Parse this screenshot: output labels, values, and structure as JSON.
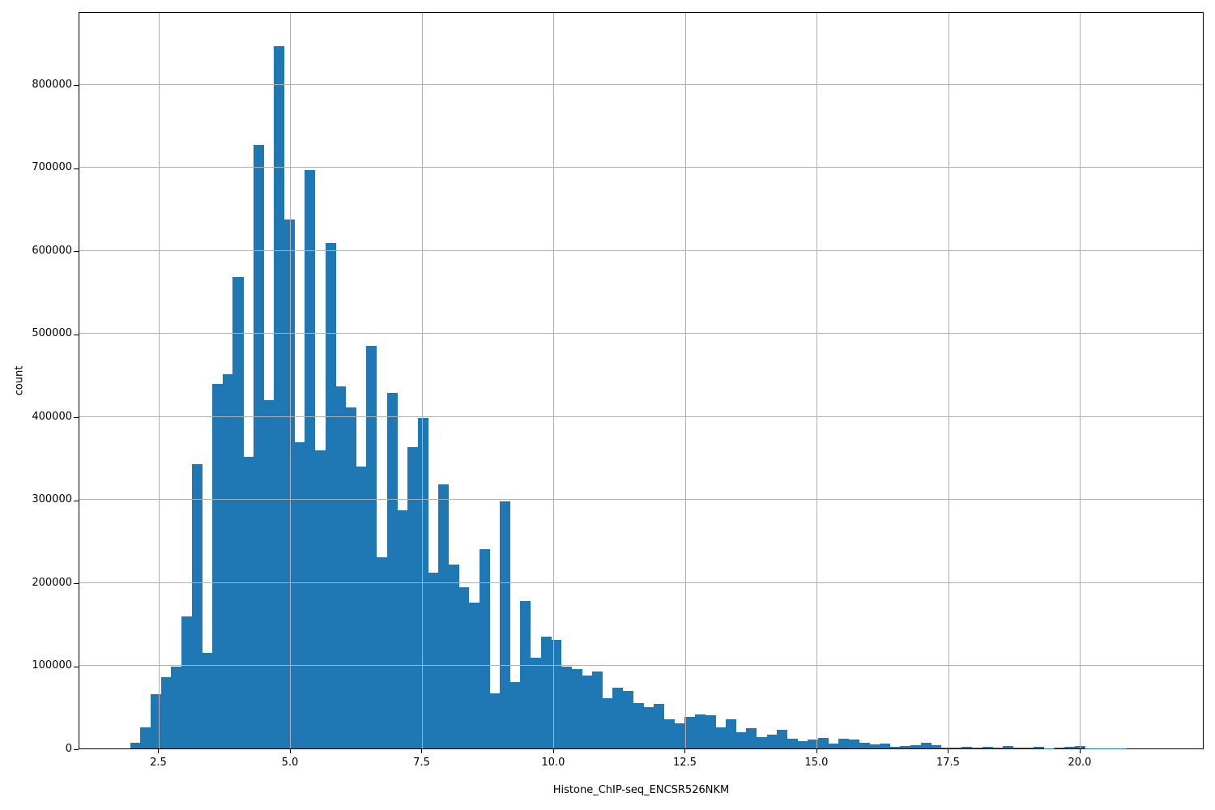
{
  "chart_data": {
    "type": "bar",
    "subtype": "histogram",
    "title": "",
    "xlabel": "Histone_ChIP-seq_ENCSR526NKM",
    "ylabel": "count",
    "bar_color": "#1f77b4",
    "grid_color": "#b0b0b0",
    "axis_color": "#000000",
    "background_color": "#ffffff",
    "grid": true,
    "legend": false,
    "xlim": [
      0.985,
      22.355
    ],
    "ylim": [
      0,
      888000
    ],
    "x_ticks": [
      2.5,
      5.0,
      7.5,
      10.0,
      12.5,
      15.0,
      17.5,
      20.0
    ],
    "y_ticks": [
      0,
      100000,
      200000,
      300000,
      400000,
      500000,
      600000,
      700000,
      800000
    ],
    "bin_start": 1.95,
    "bin_width": 0.195,
    "values": [
      7000,
      25000,
      65000,
      86000,
      99000,
      159000,
      343000,
      115000,
      439000,
      451000,
      568000,
      351000,
      727000,
      420000,
      846000,
      637000,
      369000,
      697000,
      359000,
      609000,
      436000,
      411000,
      340000,
      485000,
      230000,
      428000,
      287000,
      363000,
      398000,
      212000,
      318000,
      222000,
      194000,
      176000,
      240000,
      66000,
      298000,
      80000,
      178000,
      109000,
      135000,
      131000,
      99000,
      96000,
      88000,
      93000,
      61000,
      73000,
      69000,
      55000,
      50000,
      54000,
      35000,
      30000,
      38000,
      41000,
      40000,
      25000,
      35000,
      20000,
      24000,
      14000,
      17000,
      22000,
      12000,
      8500,
      11000,
      12500,
      6000,
      12000,
      11000,
      6500,
      5000,
      6000,
      1500,
      3200,
      4200,
      6500,
      4000,
      1000,
      1300,
      1900,
      1000,
      2200,
      1100,
      3200,
      900,
      700,
      1600,
      400,
      600,
      1800,
      3200,
      300,
      150,
      100,
      80,
      50,
      30,
      20
    ]
  }
}
